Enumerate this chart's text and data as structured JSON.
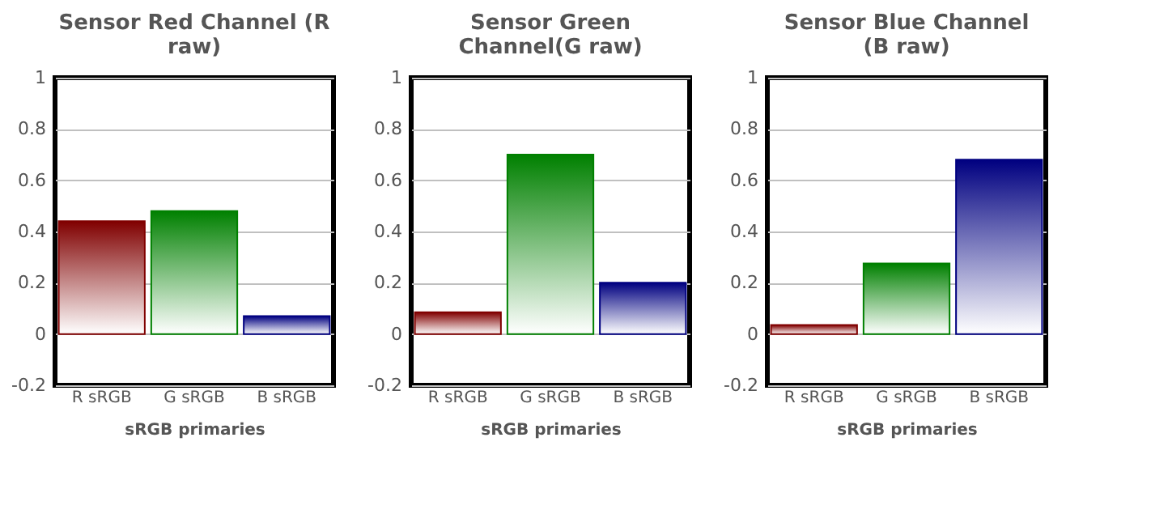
{
  "chart_data": [
    {
      "type": "bar",
      "title": "Sensor Red Channel (R raw)",
      "xlabel": "sRGB primaries",
      "categories": [
        "R sRGB",
        "G sRGB",
        "B sRGB"
      ],
      "values": [
        0.44,
        0.48,
        0.07
      ],
      "colors": [
        "#800000",
        "#008000",
        "#000080"
      ],
      "ylim": [
        -0.2,
        1
      ],
      "yticks": [
        -0.2,
        0,
        0.2,
        0.4,
        0.6,
        0.8,
        1
      ],
      "grid": "y"
    },
    {
      "type": "bar",
      "title": "Sensor Green Channel(G raw)",
      "xlabel": "sRGB primaries",
      "categories": [
        "R sRGB",
        "G sRGB",
        "B sRGB"
      ],
      "values": [
        0.085,
        0.7,
        0.2
      ],
      "colors": [
        "#800000",
        "#008000",
        "#000080"
      ],
      "ylim": [
        -0.2,
        1
      ],
      "yticks": [
        -0.2,
        0,
        0.2,
        0.4,
        0.6,
        0.8,
        1
      ],
      "grid": "y"
    },
    {
      "type": "bar",
      "title": "Sensor Blue Channel (B raw)",
      "xlabel": "sRGB primaries",
      "categories": [
        "R sRGB",
        "G sRGB",
        "B sRGB"
      ],
      "values": [
        0.035,
        0.275,
        0.68
      ],
      "colors": [
        "#800000",
        "#008000",
        "#000080"
      ],
      "ylim": [
        -0.2,
        1
      ],
      "yticks": [
        -0.2,
        0,
        0.2,
        0.4,
        0.6,
        0.8,
        1
      ],
      "grid": "y"
    }
  ]
}
